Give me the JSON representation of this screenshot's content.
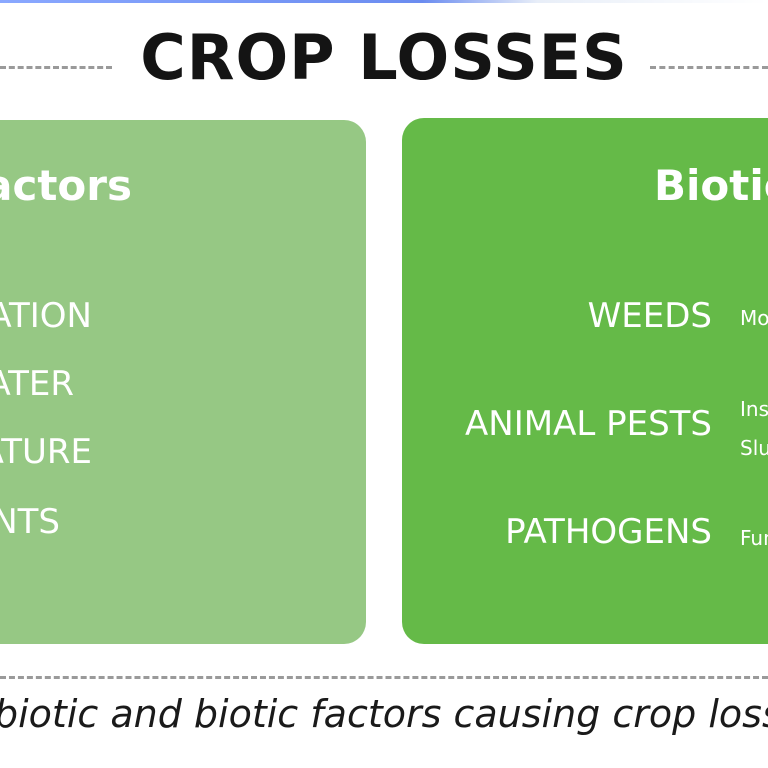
{
  "title": "CROP LOSSES",
  "abiotic_panel": {
    "title": "Abiotic factors",
    "items": [
      "RADIATION",
      "WATER",
      "TEMPERATURE",
      "NUTRIENTS"
    ]
  },
  "biotic_panel": {
    "title": "Biotic factors",
    "items": [
      {
        "label": "WEEDS",
        "examples": [
          "Monocots, Dicots"
        ]
      },
      {
        "label": "ANIMAL PESTS",
        "examples": [
          "Insects, Mites,",
          "Slugs, Rodents"
        ]
      },
      {
        "label": "PATHOGENS",
        "examples": [
          "Fungi, Bacteria, Viruses"
        ]
      }
    ]
  },
  "caption": "Abiotic and biotic factors causing crop losses",
  "colors": {
    "abiotic_panel": "#96c884",
    "biotic_panel": "#65ba48",
    "title_text": "#141414",
    "dash": "#9a9a9a"
  }
}
